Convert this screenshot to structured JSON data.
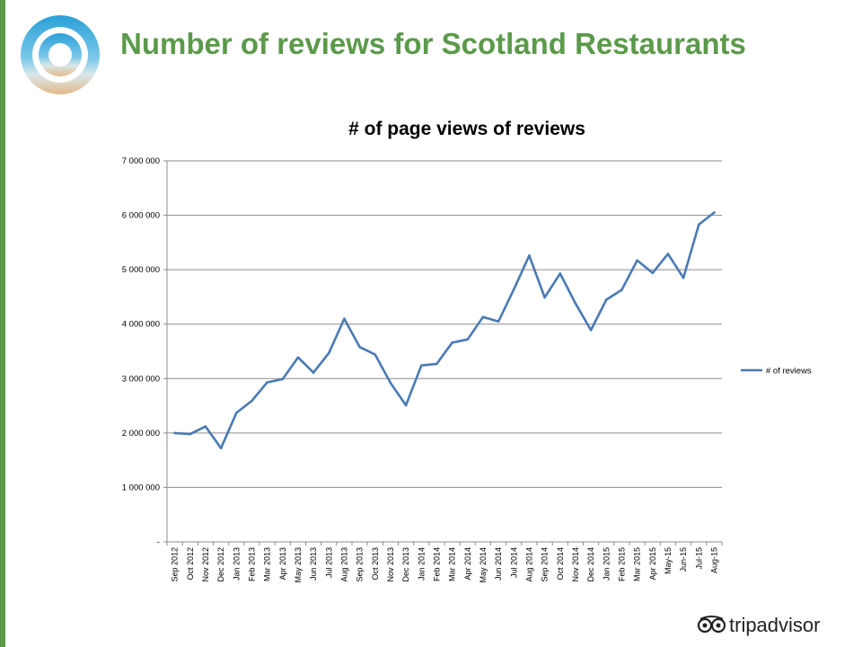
{
  "slide": {
    "title": "Number of reviews for Scotland Restaurants",
    "brand": "tripadvisor"
  },
  "colors": {
    "accent": "#5b9a4a",
    "series": "#4a7ab5"
  },
  "icons": [
    "beach-ring-logo-icon",
    "tripadvisor-owl-icon"
  ],
  "chart_data": {
    "type": "line",
    "title": "# of page views of reviews",
    "xlabel": "",
    "ylabel": "",
    "ylim": [
      0,
      7000000
    ],
    "yticks": [
      "-",
      "1 000 000",
      "2 000 000",
      "3 000 000",
      "4 000 000",
      "5 000 000",
      "6 000 000",
      "7 000 000"
    ],
    "grid": true,
    "legend": "right",
    "categories": [
      "Sep 2012",
      "Oct 2012",
      "Nov 2012",
      "Dec 2012",
      "Jan 2013",
      "Feb 2013",
      "Mar 2013",
      "Apr 2013",
      "May 2013",
      "Jun 2013",
      "Jul 2013",
      "Aug 2013",
      "Sep 2013",
      "Oct 2013",
      "Nov 2013",
      "Dec 2013",
      "Jan 2014",
      "Feb 2014",
      "Mar 2014",
      "Apr 2014",
      "May 2014",
      "Jun 2014",
      "Jul 2014",
      "Aug 2014",
      "Sep 2014",
      "Oct 2014",
      "Nov 2014",
      "Dec 2014",
      "Jan 2015",
      "Feb 2015",
      "Mar 2015",
      "Apr 2015",
      "May-15",
      "Jun-15",
      "Jul-15",
      "Aug-15"
    ],
    "series": [
      {
        "name": "# of reviews",
        "values": [
          2000000,
          1980000,
          2120000,
          1720000,
          2370000,
          2590000,
          2930000,
          2990000,
          3390000,
          3110000,
          3470000,
          4100000,
          3580000,
          3440000,
          2920000,
          2510000,
          3240000,
          3270000,
          3660000,
          3720000,
          4130000,
          4050000,
          4640000,
          5260000,
          4490000,
          4930000,
          4380000,
          3890000,
          4450000,
          4630000,
          5170000,
          4940000,
          5290000,
          4850000,
          5830000,
          6050000
        ]
      }
    ]
  }
}
